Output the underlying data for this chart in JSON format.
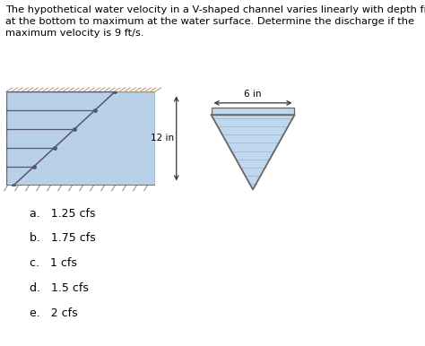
{
  "background_color": "#ffffff",
  "title_text": "The hypothetical water velocity in a V-shaped channel varies linearly with depth from zero\nat the bottom to maximum at the water surface. Determine the discharge if the\nmaximum velocity is 9 ft/s.",
  "title_fontsize": 8.2,
  "options": [
    "a.   1.25 cfs",
    "b.   1.75 cfs",
    "c.   1 cfs",
    "d.   1.5 cfs",
    "e.   2 cfs"
  ],
  "options_fontsize": 9.0,
  "vel_profile_fill": "#b8d0e8",
  "vel_profile_top_hatch": "#c8b89a",
  "vel_line_color": "#555577",
  "channel_fill_color": "#c0d8ee",
  "channel_line_color": "#666666",
  "dim_label_12in": "12 in",
  "dim_label_6in": "6 in",
  "dim_fontsize": 7.5,
  "arrow_color": "#333333"
}
